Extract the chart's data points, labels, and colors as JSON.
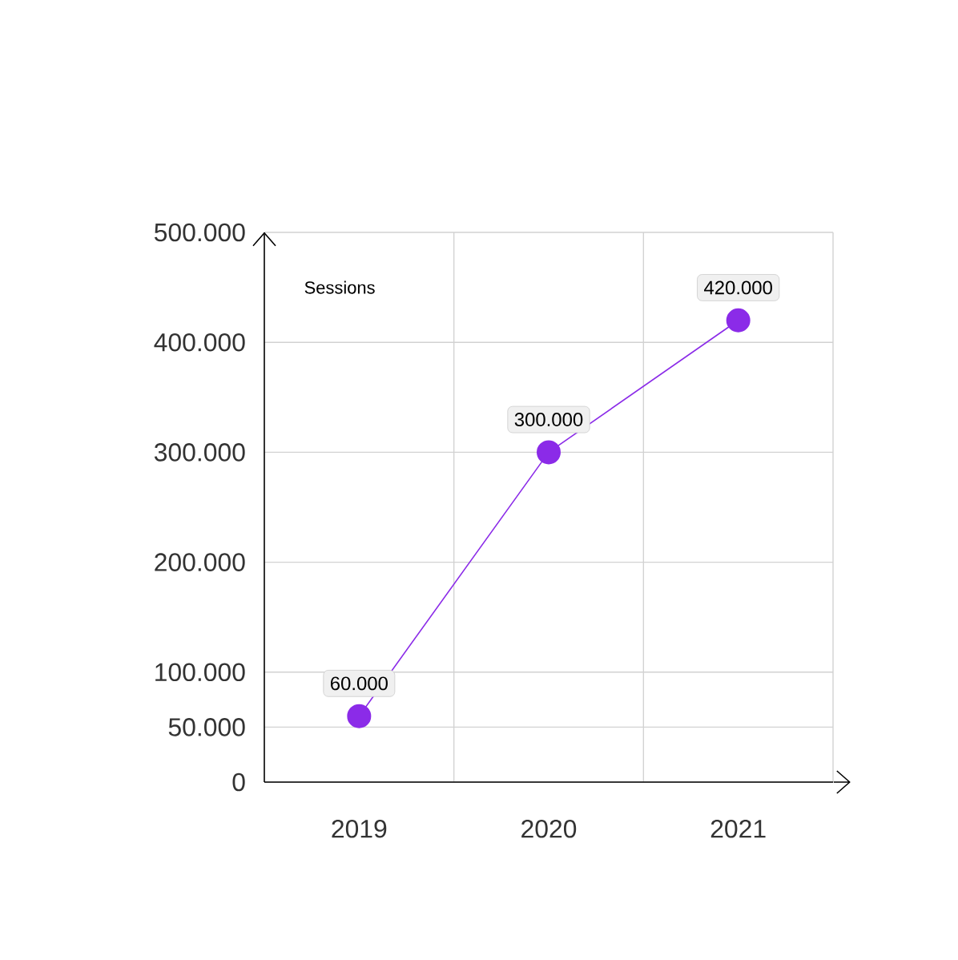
{
  "chart_data": {
    "type": "line",
    "ylabel": "Sessions",
    "categories": [
      "2019",
      "2020",
      "2021"
    ],
    "series": [
      {
        "color": "#8b2be8",
        "values": [
          60000,
          300000,
          420000
        ]
      }
    ],
    "value_labels": [
      "60.000",
      "300.000",
      "420.000"
    ],
    "ylim": [
      0,
      500000
    ],
    "yticks": [
      {
        "value": 0,
        "label": "0"
      },
      {
        "value": 50000,
        "label": "50.000"
      },
      {
        "value": 100000,
        "label": "100.000"
      },
      {
        "value": 200000,
        "label": "200.000"
      },
      {
        "value": 300000,
        "label": "300.000"
      },
      {
        "value": 400000,
        "label": "400.000"
      },
      {
        "value": 500000,
        "label": "500.000"
      }
    ],
    "grid": true,
    "marker": "circle",
    "line_style": "solid"
  }
}
